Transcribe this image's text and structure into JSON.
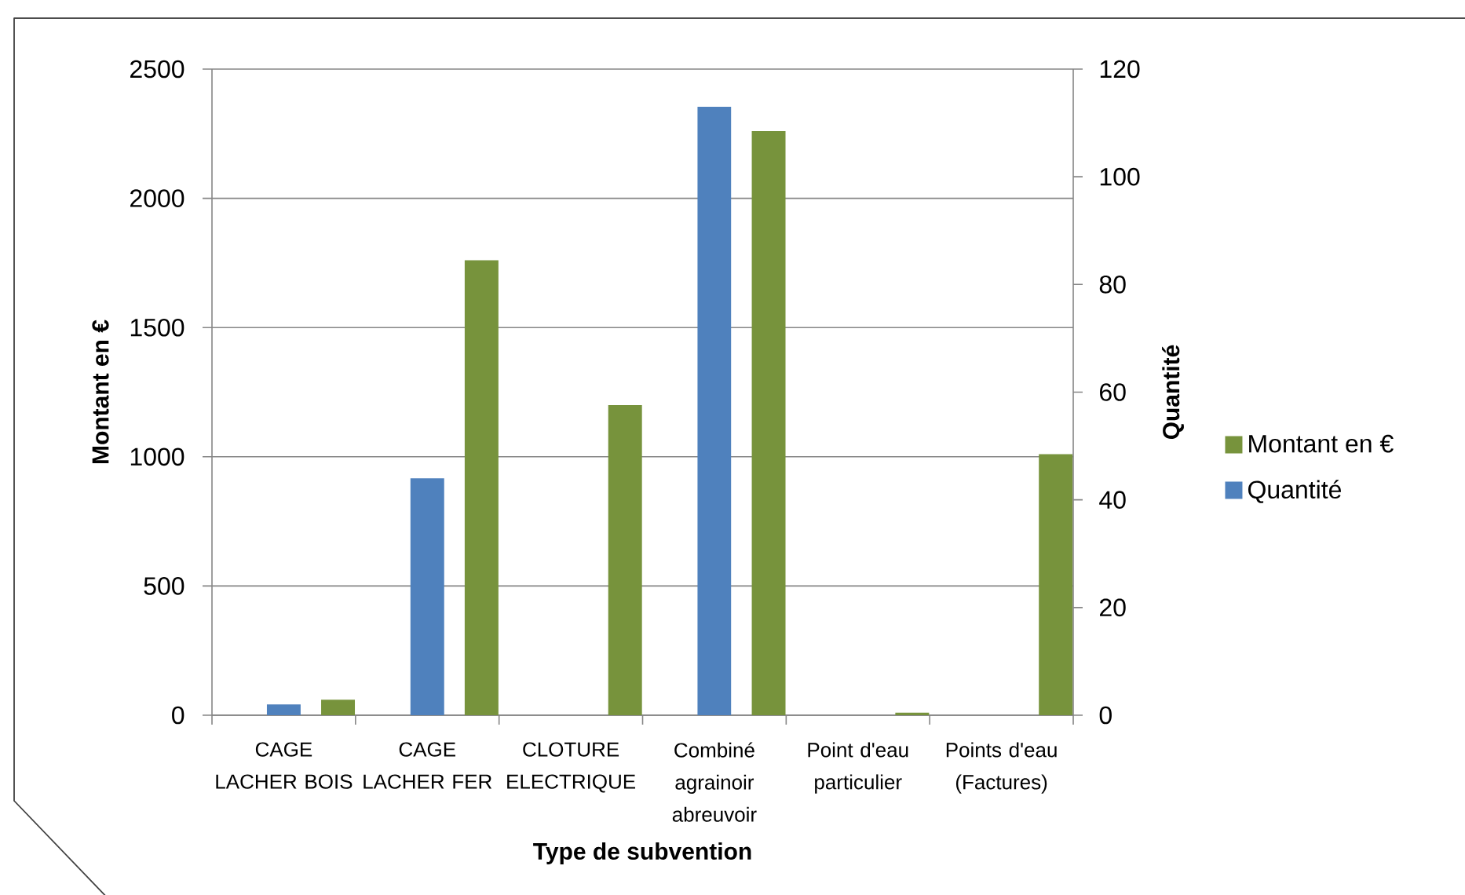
{
  "chart_data": {
    "type": "bar",
    "xlabel": "Type de subvention",
    "ylabel": "Montant en €",
    "y2label": "Quantité",
    "categories": [
      "CAGE LACHER BOIS",
      "CAGE LACHER FER",
      "CLOTURE ELECTRIQUE",
      "Combiné agrainoir abreuvoir",
      "Point d'eau particulier",
      "Points d'eau (Factures)"
    ],
    "series": [
      {
        "name": "Montant en €",
        "color": "#77933c",
        "values": [
          60,
          1760,
          1200,
          2260,
          10,
          1010
        ]
      },
      {
        "name": "Quantité",
        "color": "#4f81bd",
        "axis": "y2",
        "values": [
          2,
          44,
          null,
          113,
          null,
          null
        ]
      }
    ],
    "ylim": [
      0,
      2500
    ],
    "yticks": [
      0,
      500,
      1000,
      1500,
      2000,
      2500
    ],
    "y2lim": [
      0,
      120
    ],
    "y2ticks": [
      0,
      20,
      40,
      60,
      80,
      100,
      120
    ],
    "grid": "y",
    "legend": "right"
  }
}
